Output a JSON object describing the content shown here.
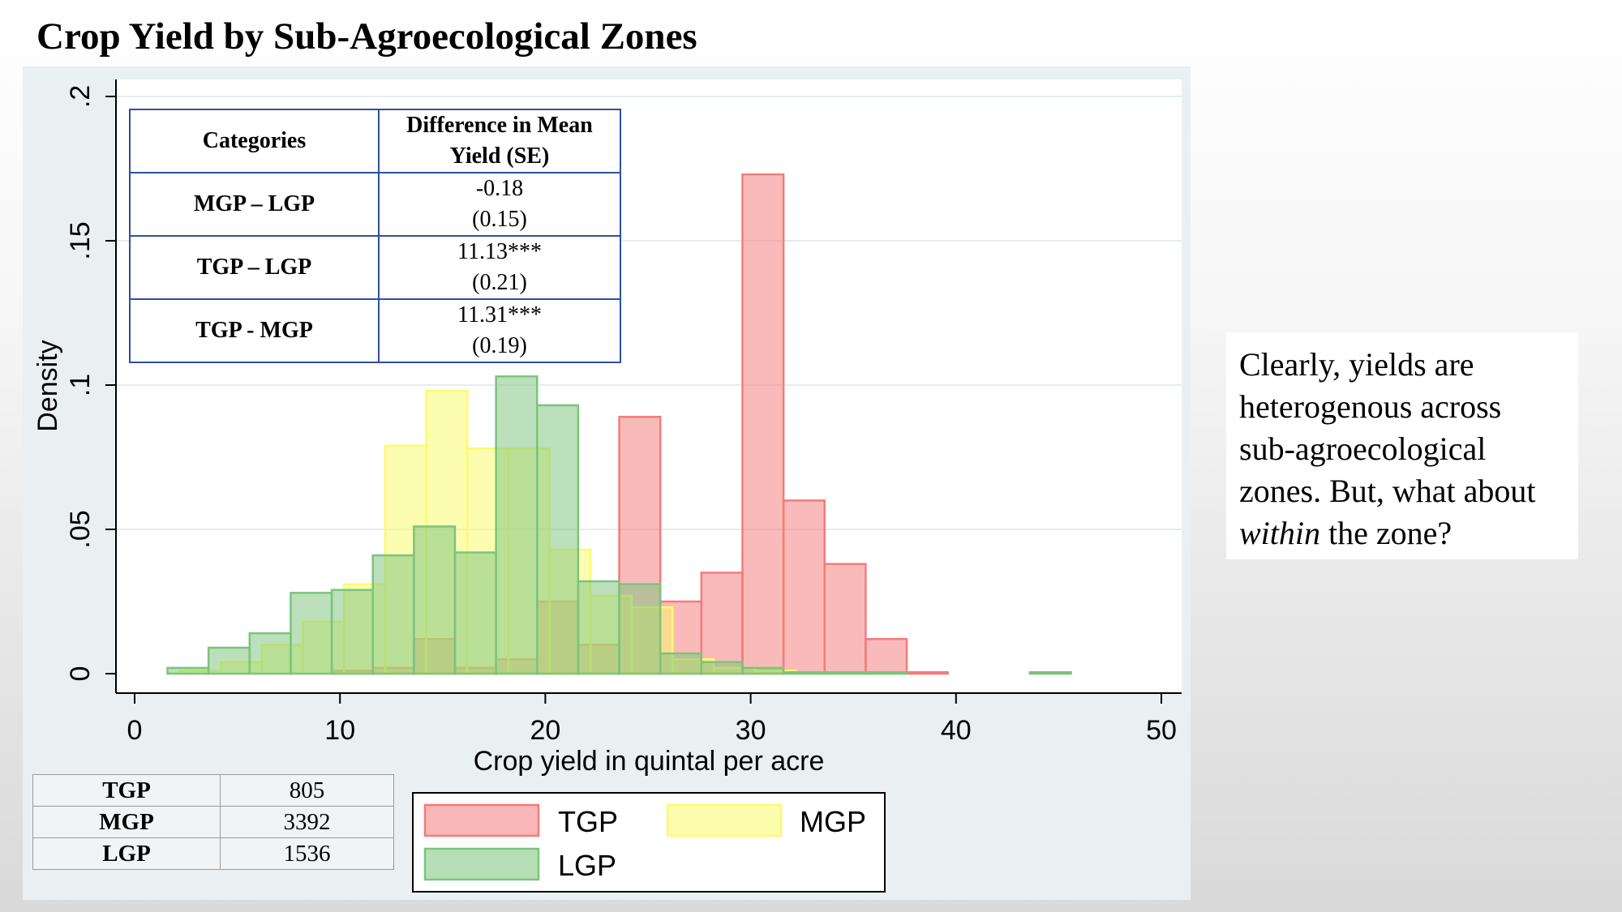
{
  "slide": {
    "title": "Crop Yield by Sub-Agroecological Zones",
    "note": {
      "before": "Clearly, yields are heterogenous across sub-agroecological zones. But, what about ",
      "emphasis": "within",
      "after": " the zone?"
    }
  },
  "chart_data": {
    "type": "bar",
    "subtype": "overlaid histogram",
    "xlabel": "Crop yield in quintal per acre",
    "ylabel": "Density",
    "xlim": [
      0,
      50
    ],
    "ylim": [
      0,
      0.2
    ],
    "x_ticks": [
      0,
      10,
      20,
      30,
      40,
      50
    ],
    "x_tick_labels": [
      "0",
      "10",
      "20",
      "30",
      "40",
      "50"
    ],
    "y_ticks": [
      0,
      0.05,
      0.1,
      0.15,
      0.2
    ],
    "y_tick_labels": [
      "0",
      ".05",
      ".1",
      ".15",
      ".2"
    ],
    "grid": "horizontal",
    "legend": {
      "placement": "bottom",
      "entries": [
        "TGP",
        "MGP",
        "LGP"
      ]
    },
    "series": [
      {
        "name": "TGP",
        "color": "#f47b7b",
        "bins": [
          {
            "x0": 9.6,
            "x1": 11.6,
            "y": 0.001
          },
          {
            "x0": 11.6,
            "x1": 13.6,
            "y": 0.002
          },
          {
            "x0": 13.6,
            "x1": 15.6,
            "y": 0.012
          },
          {
            "x0": 15.6,
            "x1": 17.6,
            "y": 0.002
          },
          {
            "x0": 17.6,
            "x1": 19.6,
            "y": 0.005
          },
          {
            "x0": 19.6,
            "x1": 21.6,
            "y": 0.025
          },
          {
            "x0": 21.6,
            "x1": 23.6,
            "y": 0.01
          },
          {
            "x0": 23.6,
            "x1": 25.6,
            "y": 0.089
          },
          {
            "x0": 25.6,
            "x1": 27.6,
            "y": 0.025
          },
          {
            "x0": 27.6,
            "x1": 29.6,
            "y": 0.035
          },
          {
            "x0": 29.6,
            "x1": 31.6,
            "y": 0.173
          },
          {
            "x0": 31.6,
            "x1": 33.6,
            "y": 0.06
          },
          {
            "x0": 33.6,
            "x1": 35.6,
            "y": 0.038
          },
          {
            "x0": 35.6,
            "x1": 37.6,
            "y": 0.012
          },
          {
            "x0": 37.6,
            "x1": 39.6,
            "y": 0.0005
          }
        ]
      },
      {
        "name": "MGP",
        "color": "#fbfb6c",
        "bins": [
          {
            "x0": 2.2,
            "x1": 4.2,
            "y": 0.001
          },
          {
            "x0": 4.2,
            "x1": 6.2,
            "y": 0.004
          },
          {
            "x0": 6.2,
            "x1": 8.2,
            "y": 0.01
          },
          {
            "x0": 8.2,
            "x1": 10.2,
            "y": 0.018
          },
          {
            "x0": 10.2,
            "x1": 12.2,
            "y": 0.031
          },
          {
            "x0": 12.2,
            "x1": 14.2,
            "y": 0.079
          },
          {
            "x0": 14.2,
            "x1": 16.2,
            "y": 0.098
          },
          {
            "x0": 16.2,
            "x1": 18.2,
            "y": 0.078
          },
          {
            "x0": 18.2,
            "x1": 20.2,
            "y": 0.078
          },
          {
            "x0": 20.2,
            "x1": 22.2,
            "y": 0.043
          },
          {
            "x0": 22.2,
            "x1": 24.2,
            "y": 0.027
          },
          {
            "x0": 24.2,
            "x1": 26.2,
            "y": 0.023
          },
          {
            "x0": 26.2,
            "x1": 28.2,
            "y": 0.005
          },
          {
            "x0": 28.2,
            "x1": 30.2,
            "y": 0.002
          },
          {
            "x0": 30.2,
            "x1": 32.2,
            "y": 0.001
          }
        ]
      },
      {
        "name": "LGP",
        "color": "#7cc47c",
        "bins": [
          {
            "x0": 1.6,
            "x1": 3.6,
            "y": 0.002
          },
          {
            "x0": 3.6,
            "x1": 5.6,
            "y": 0.009
          },
          {
            "x0": 5.6,
            "x1": 7.6,
            "y": 0.014
          },
          {
            "x0": 7.6,
            "x1": 9.6,
            "y": 0.028
          },
          {
            "x0": 9.6,
            "x1": 11.6,
            "y": 0.029
          },
          {
            "x0": 11.6,
            "x1": 13.6,
            "y": 0.041
          },
          {
            "x0": 13.6,
            "x1": 15.6,
            "y": 0.051
          },
          {
            "x0": 15.6,
            "x1": 17.6,
            "y": 0.042
          },
          {
            "x0": 17.6,
            "x1": 19.6,
            "y": 0.103
          },
          {
            "x0": 19.6,
            "x1": 21.6,
            "y": 0.093
          },
          {
            "x0": 21.6,
            "x1": 23.6,
            "y": 0.032
          },
          {
            "x0": 23.6,
            "x1": 25.6,
            "y": 0.031
          },
          {
            "x0": 25.6,
            "x1": 27.6,
            "y": 0.007
          },
          {
            "x0": 27.6,
            "x1": 29.6,
            "y": 0.004
          },
          {
            "x0": 29.6,
            "x1": 31.6,
            "y": 0.002
          },
          {
            "x0": 31.6,
            "x1": 33.6,
            "y": 0.0005
          },
          {
            "x0": 33.6,
            "x1": 35.6,
            "y": 0.0005
          },
          {
            "x0": 35.6,
            "x1": 37.6,
            "y": 0.0005
          },
          {
            "x0": 43.6,
            "x1": 45.6,
            "y": 0.0005
          }
        ]
      }
    ]
  },
  "difference_table": {
    "headers": [
      "Categories",
      "Difference in Mean Yield (SE)"
    ],
    "rows": [
      {
        "category": "MGP – LGP",
        "difference": "-0.18",
        "se": "(0.15)"
      },
      {
        "category": "TGP – LGP",
        "difference": "11.13***",
        "se": "(0.21)"
      },
      {
        "category": "TGP - MGP",
        "difference": "11.31***",
        "se": "(0.19)"
      }
    ]
  },
  "count_table": {
    "rows": [
      {
        "zone": "TGP",
        "count": "805"
      },
      {
        "zone": "MGP",
        "count": "3392"
      },
      {
        "zone": "LGP",
        "count": "1536"
      }
    ]
  }
}
